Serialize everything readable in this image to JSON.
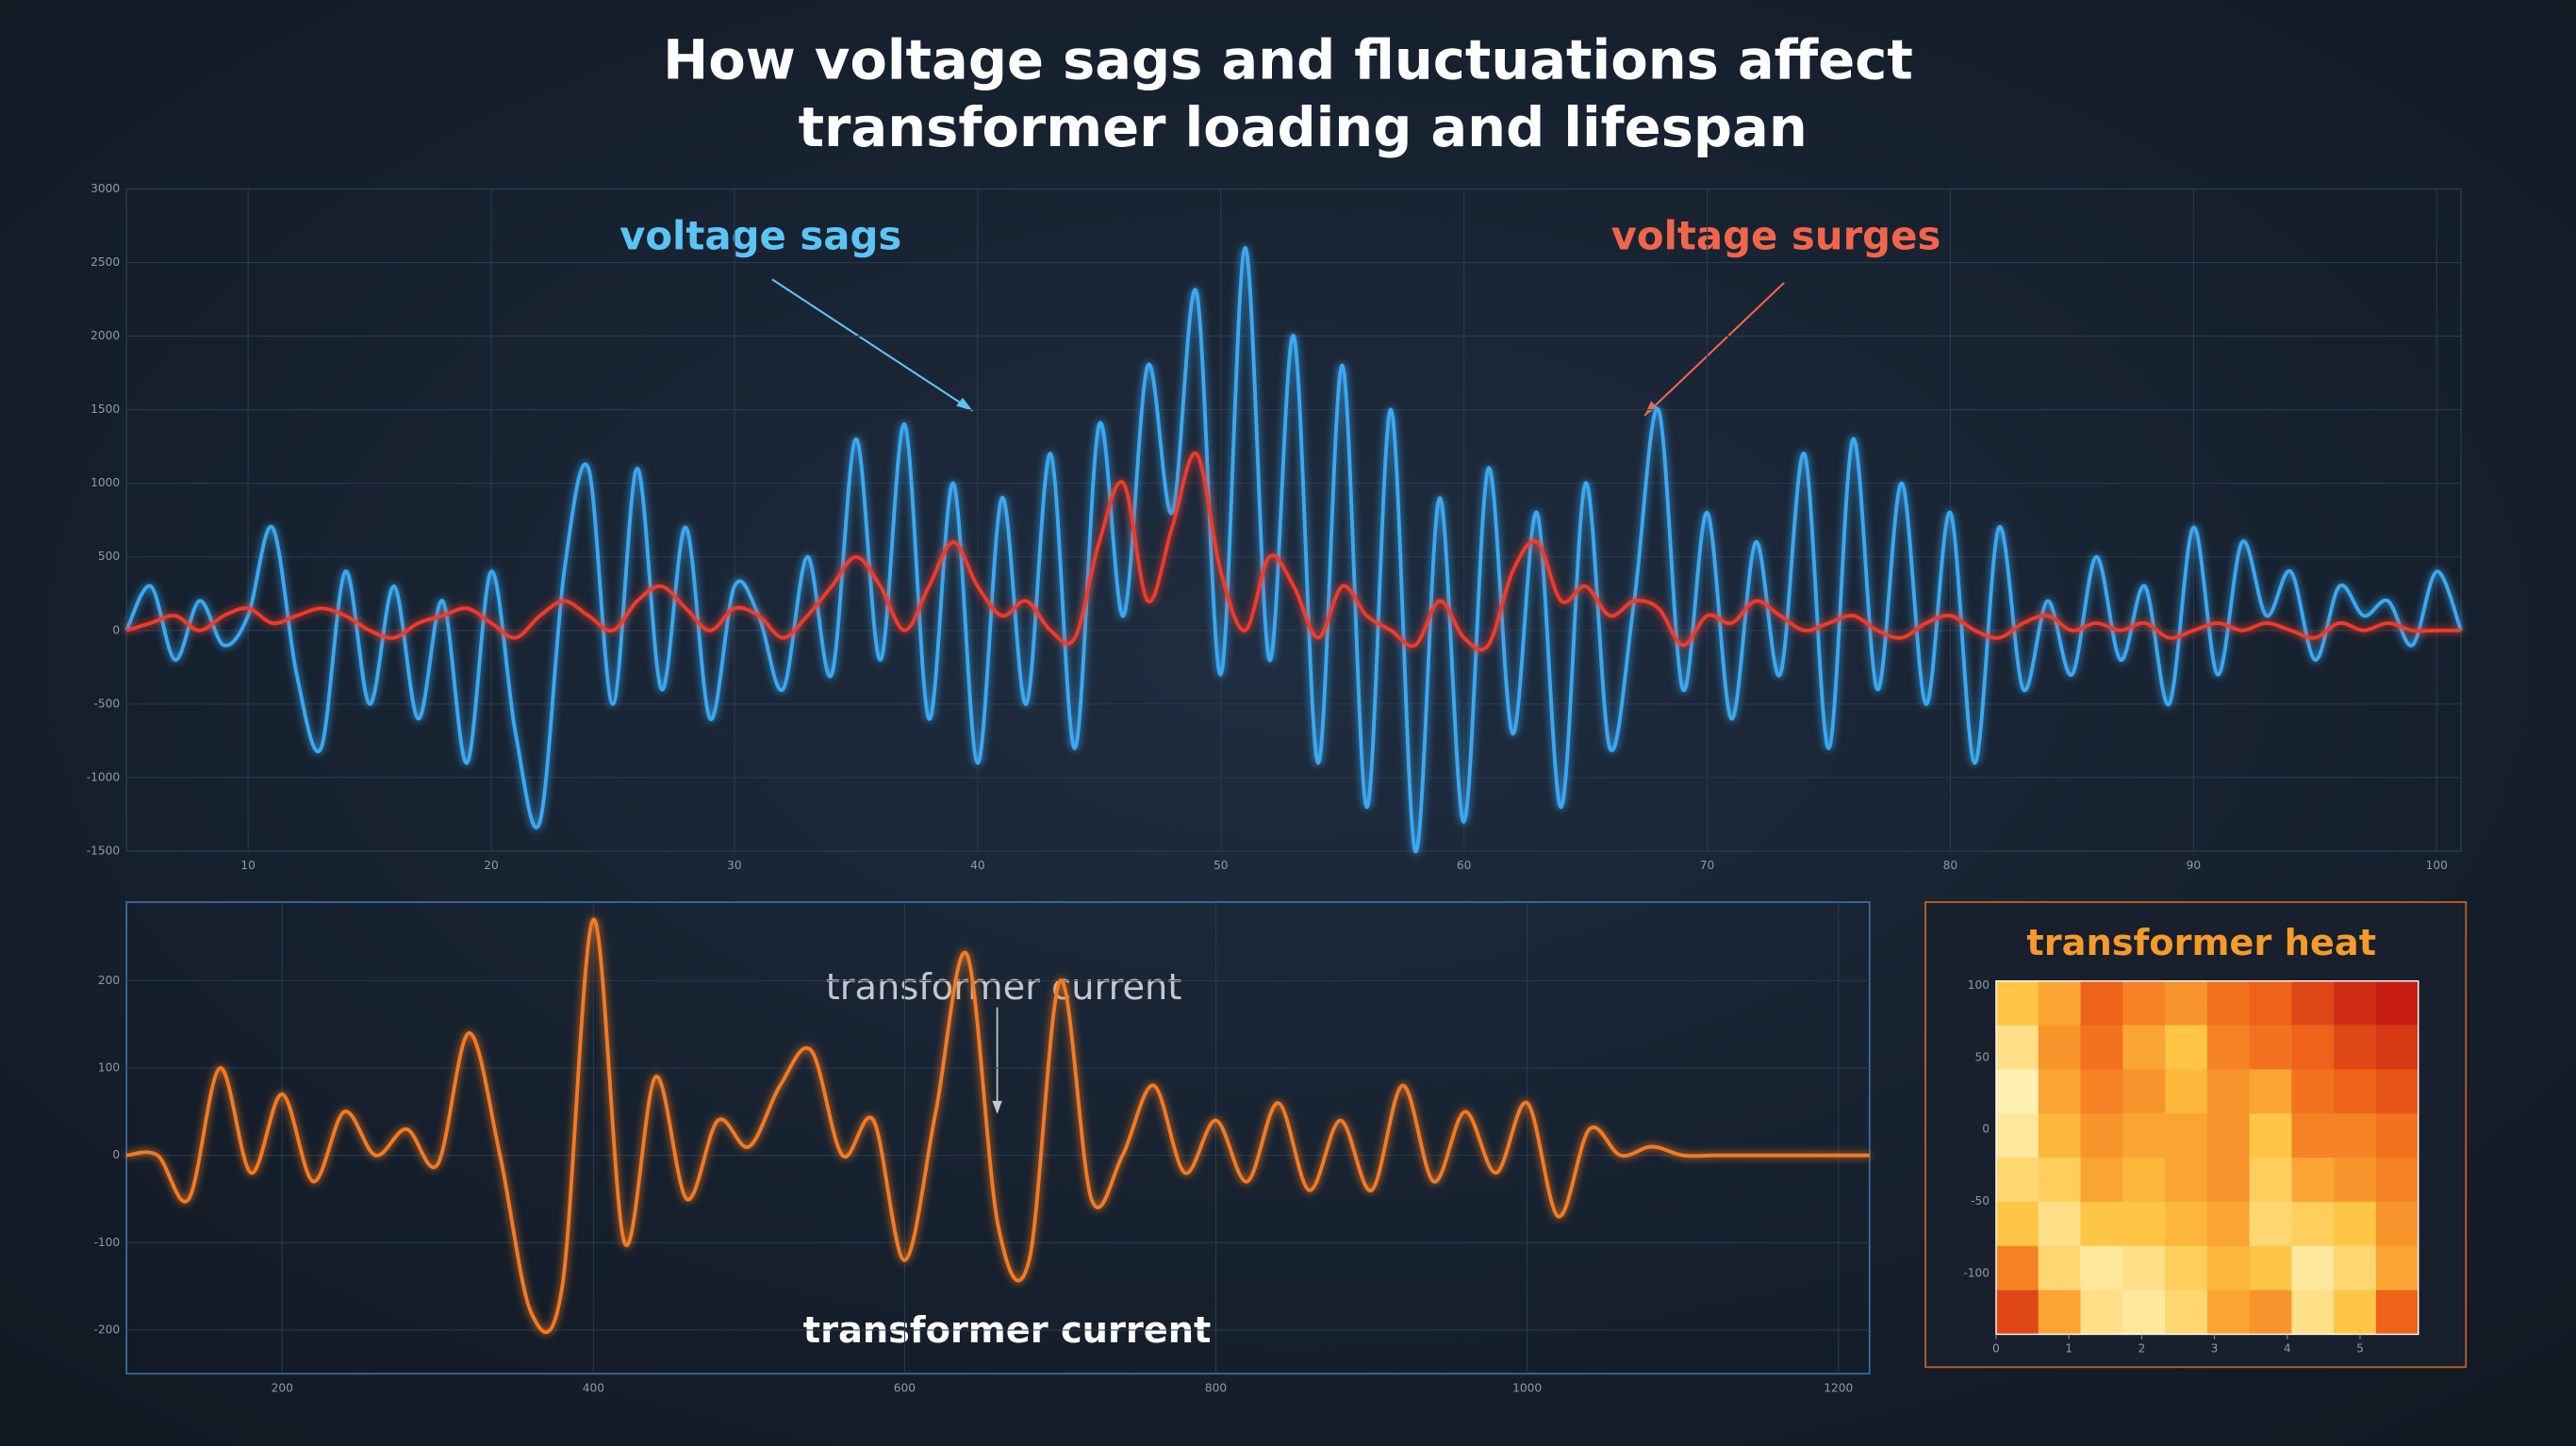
{
  "title": [
    "How voltage sags and fluctuations affect",
    "transformer loading and lifespan"
  ],
  "chart_data": [
    {
      "type": "line",
      "annotations": [
        "voltage sags",
        "voltage surges"
      ],
      "x": [
        5,
        6,
        7,
        8,
        9,
        10,
        11,
        12,
        13,
        14,
        15,
        16,
        17,
        18,
        19,
        20,
        21,
        22,
        23,
        24,
        25,
        26,
        27,
        28,
        29,
        30,
        31,
        32,
        33,
        34,
        35,
        36,
        37,
        38,
        39,
        40,
        41,
        42,
        43,
        44,
        45,
        46,
        47,
        48,
        49,
        50,
        51,
        52,
        53,
        54,
        55,
        56,
        57,
        58,
        59,
        60,
        61,
        62,
        63,
        64,
        65,
        66,
        67,
        68,
        69,
        70,
        71,
        72,
        73,
        74,
        75,
        76,
        77,
        78,
        79,
        80,
        81,
        82,
        83,
        84,
        85,
        86,
        87,
        88,
        89,
        90,
        91,
        92,
        93,
        94,
        95,
        96,
        97,
        98,
        99,
        100,
        101
      ],
      "series": [
        {
          "color": "#3aa8f0",
          "values": [
            0,
            300,
            -200,
            200,
            -100,
            100,
            700,
            -300,
            -800,
            400,
            -500,
            300,
            -600,
            200,
            -900,
            400,
            -700,
            -1300,
            400,
            1100,
            -500,
            1100,
            -400,
            700,
            -600,
            300,
            100,
            -400,
            500,
            -300,
            1300,
            -200,
            1400,
            -600,
            1000,
            -900,
            900,
            -500,
            1200,
            -800,
            1400,
            100,
            1800,
            800,
            2300,
            -300,
            2600,
            -200,
            2000,
            -900,
            1800,
            -1200,
            1500,
            -1500,
            900,
            -1300,
            1100,
            -700,
            800,
            -1200,
            1000,
            -800,
            200,
            1500,
            -400,
            800,
            -600,
            600,
            -300,
            1200,
            -800,
            1300,
            -400,
            1000,
            -500,
            800,
            -900,
            700,
            -400,
            200,
            -300,
            500,
            -200,
            300,
            -500,
            700,
            -300,
            600,
            100,
            400,
            -200,
            300,
            100,
            200,
            -100,
            400,
            0
          ]
        },
        {
          "color": "#ee3b2a",
          "values": [
            0,
            50,
            100,
            0,
            100,
            150,
            50,
            100,
            150,
            100,
            0,
            -50,
            50,
            100,
            150,
            50,
            -50,
            100,
            200,
            100,
            0,
            200,
            300,
            150,
            0,
            150,
            100,
            -50,
            100,
            300,
            500,
            300,
            0,
            300,
            600,
            300,
            100,
            200,
            0,
            -50,
            600,
            1000,
            200,
            700,
            1200,
            400,
            0,
            500,
            300,
            -50,
            300,
            100,
            0,
            -100,
            200,
            -50,
            -100,
            400,
            600,
            200,
            300,
            100,
            200,
            150,
            -100,
            100,
            50,
            200,
            100,
            0,
            50,
            100,
            0,
            -50,
            50,
            100,
            0,
            -50,
            50,
            100,
            0,
            50,
            0,
            50,
            -50,
            0,
            50,
            0,
            50,
            0,
            -50,
            50,
            0,
            50,
            0,
            0,
            0
          ]
        }
      ],
      "xlim": [
        5,
        101
      ],
      "ylim": [
        -1500,
        3000
      ],
      "xticks": [
        10,
        20,
        30,
        40,
        50,
        60,
        70,
        80,
        90,
        100
      ],
      "yticks": [
        3000,
        2500,
        2000,
        1500,
        1000,
        500,
        0,
        -500,
        -1000,
        -1500
      ],
      "grid": true
    },
    {
      "type": "line",
      "annotations": [
        "transformer current",
        "transformer current"
      ],
      "x": [
        100,
        120,
        140,
        160,
        180,
        200,
        220,
        240,
        260,
        280,
        300,
        320,
        340,
        360,
        380,
        400,
        420,
        440,
        460,
        480,
        500,
        520,
        540,
        560,
        580,
        600,
        620,
        640,
        660,
        680,
        700,
        720,
        740,
        760,
        780,
        800,
        820,
        840,
        860,
        880,
        900,
        920,
        940,
        960,
        980,
        1000,
        1020,
        1040,
        1060,
        1080,
        1100,
        1120,
        1140,
        1160,
        1180,
        1200,
        1220
      ],
      "series": [
        {
          "color": "#f47a20",
          "values": [
            0,
            0,
            -50,
            100,
            -20,
            70,
            -30,
            50,
            0,
            30,
            -10,
            140,
            0,
            -180,
            -150,
            270,
            -100,
            90,
            -50,
            40,
            10,
            80,
            120,
            0,
            40,
            -120,
            50,
            230,
            -80,
            -120,
            200,
            -50,
            0,
            80,
            -20,
            40,
            -30,
            60,
            -40,
            40,
            -40,
            80,
            -30,
            50,
            -20,
            60,
            -70,
            30,
            0,
            10,
            0,
            0,
            0,
            0,
            0,
            0,
            0
          ]
        }
      ],
      "xlim": [
        100,
        1220
      ],
      "ylim": [
        -250,
        290
      ],
      "xticks": [
        200,
        400,
        600,
        800,
        1000,
        1200
      ],
      "yticks": [
        200,
        100,
        0,
        -100,
        -200
      ],
      "grid": true
    },
    {
      "type": "heatmap",
      "title": "transformer heat",
      "z": [
        [
          70,
          60,
          40,
          50,
          55,
          45,
          40,
          30,
          20,
          15
        ],
        [
          85,
          55,
          45,
          60,
          70,
          50,
          45,
          40,
          30,
          25
        ],
        [
          95,
          60,
          50,
          55,
          65,
          55,
          60,
          45,
          40,
          35
        ],
        [
          90,
          65,
          55,
          60,
          60,
          55,
          70,
          50,
          50,
          45
        ],
        [
          80,
          75,
          60,
          65,
          60,
          55,
          75,
          60,
          55,
          50
        ],
        [
          70,
          85,
          70,
          70,
          65,
          60,
          80,
          75,
          70,
          55
        ],
        [
          50,
          80,
          90,
          85,
          75,
          65,
          70,
          90,
          80,
          60
        ],
        [
          30,
          60,
          85,
          90,
          80,
          60,
          55,
          85,
          70,
          40
        ]
      ],
      "colors": [
        "#c81e12",
        "#f0661a",
        "#ffc23e",
        "#fff1b4"
      ],
      "xlim": [
        0,
        5.8
      ],
      "ylim": [
        -142,
        103
      ],
      "xticks": [
        0,
        1,
        2,
        3,
        4,
        5
      ],
      "yticks": [
        100,
        50,
        0,
        -50,
        -100
      ]
    }
  ]
}
